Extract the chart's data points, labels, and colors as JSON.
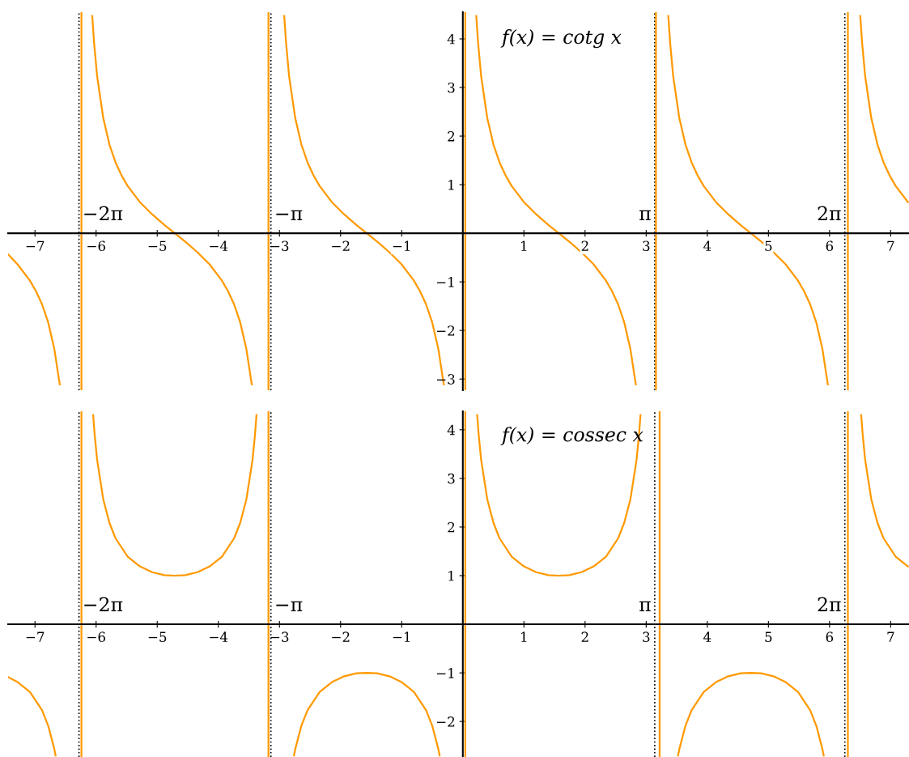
{
  "chart_data": [
    {
      "type": "line",
      "annotations": [
        "f(x) = cotg x"
      ],
      "xlim": [
        -7.44,
        7.3
      ],
      "ylim": [
        -3.23,
        4.55
      ],
      "xticks": [
        {
          "value": -7,
          "label": "−7"
        },
        {
          "value": -6,
          "label": "−6"
        },
        {
          "value": -5,
          "label": "−5"
        },
        {
          "value": -4,
          "label": "−4"
        },
        {
          "value": -3,
          "label": "−3"
        },
        {
          "value": -2,
          "label": "−2"
        },
        {
          "value": -1,
          "label": "−1"
        },
        1,
        2,
        3,
        4,
        5,
        6,
        7
      ],
      "yticks": [
        {
          "value": -3,
          "label": "−3"
        },
        {
          "value": -2,
          "label": "−2"
        },
        {
          "value": -1,
          "label": "−1"
        },
        1,
        2,
        3,
        4
      ],
      "grid": false,
      "legend": false,
      "marker": "none",
      "line_style": "solid",
      "ref_lines": [
        {
          "axis": "x",
          "value": -6.28,
          "label": "−2π",
          "color": "#000000",
          "line_style": "dotted"
        },
        {
          "axis": "x",
          "value": -3.14,
          "label": "−π",
          "color": "#000000",
          "line_style": "dotted"
        },
        {
          "axis": "x",
          "value": 3.14,
          "label": "π",
          "color": "#000000",
          "line_style": "dotted"
        },
        {
          "axis": "x",
          "value": 6.25,
          "label": "2π",
          "color": "#000000",
          "line_style": "dotted"
        },
        {
          "axis": "x",
          "value": -6.24,
          "color": "#ff9900",
          "line_style": "solid"
        },
        {
          "axis": "x",
          "value": -3.18,
          "color": "#ff9900",
          "line_style": "solid"
        },
        {
          "axis": "x",
          "value": 0.04,
          "color": "#ff9900",
          "line_style": "solid"
        },
        {
          "axis": "x",
          "value": 3.16,
          "color": "#ff9900",
          "line_style": "solid"
        },
        {
          "axis": "x",
          "value": 6.3,
          "color": "#ff9900",
          "line_style": "solid"
        }
      ],
      "series": [
        {
          "color": "#ff9900",
          "x": [
            -7.435,
            -7.285,
            -7.085,
            -6.985,
            -6.885,
            -6.785,
            -6.685,
            -6.595
          ],
          "values": [
            -0.44,
            -0.64,
            -0.97,
            -1.19,
            -1.46,
            -1.83,
            -2.37,
            -3.11
          ]
        },
        {
          "color": "#ff9900",
          "x": [
            -6.063,
            -6.033,
            -5.983,
            -5.883,
            -5.783,
            -5.683,
            -5.583,
            -5.483,
            -5.283,
            -5.083,
            -4.883,
            -4.712,
            -4.543,
            -4.343,
            -4.143,
            -3.943,
            -3.843,
            -3.743,
            -3.643,
            -3.543,
            -3.453
          ],
          "values": [
            4.47,
            3.92,
            3.23,
            2.37,
            1.83,
            1.46,
            1.19,
            0.97,
            0.64,
            0.39,
            0.17,
            0,
            -0.17,
            -0.39,
            -0.64,
            -0.97,
            -1.19,
            -1.46,
            -1.83,
            -2.37,
            -3.11
          ]
        },
        {
          "color": "#ff9900",
          "x": [
            -2.922,
            -2.892,
            -2.842,
            -2.742,
            -2.642,
            -2.542,
            -2.442,
            -2.342,
            -2.142,
            -1.942,
            -1.742,
            -1.571,
            -1.402,
            -1.202,
            -1.002,
            -0.802,
            -0.702,
            -0.602,
            -0.502,
            -0.402,
            -0.312
          ],
          "values": [
            4.47,
            3.92,
            3.23,
            2.37,
            1.83,
            1.46,
            1.19,
            0.97,
            0.64,
            0.39,
            0.17,
            0,
            -0.17,
            -0.39,
            -0.64,
            -0.97,
            -1.19,
            -1.46,
            -1.83,
            -2.37,
            -3.11
          ]
        },
        {
          "color": "#ff9900",
          "x": [
            0.22,
            0.25,
            0.3,
            0.4,
            0.5,
            0.6,
            0.7,
            0.8,
            1.0,
            1.2,
            1.4,
            1.571,
            1.74,
            1.94,
            2.14,
            2.34,
            2.44,
            2.54,
            2.64,
            2.74,
            2.83
          ],
          "values": [
            4.47,
            3.92,
            3.23,
            2.37,
            1.83,
            1.46,
            1.19,
            0.97,
            0.64,
            0.39,
            0.17,
            0,
            -0.17,
            -0.39,
            -0.64,
            -0.97,
            -1.19,
            -1.46,
            -1.83,
            -2.37,
            -3.11
          ]
        },
        {
          "color": "#ff9900",
          "x": [
            3.362,
            3.392,
            3.442,
            3.542,
            3.642,
            3.742,
            3.842,
            3.942,
            4.142,
            4.342,
            4.542,
            4.713,
            4.882,
            5.082,
            5.282,
            5.482,
            5.582,
            5.682,
            5.782,
            5.882,
            5.972
          ],
          "values": [
            4.47,
            3.92,
            3.23,
            2.37,
            1.83,
            1.46,
            1.19,
            0.97,
            0.64,
            0.39,
            0.17,
            0,
            -0.17,
            -0.39,
            -0.64,
            -0.97,
            -1.19,
            -1.46,
            -1.83,
            -2.37,
            -3.11
          ]
        },
        {
          "color": "#ff9900",
          "x": [
            6.503,
            6.533,
            6.583,
            6.683,
            6.783,
            6.883,
            6.983,
            7.083,
            7.283
          ],
          "values": [
            4.47,
            3.92,
            3.23,
            2.37,
            1.83,
            1.46,
            1.19,
            0.97,
            0.64
          ]
        }
      ]
    },
    {
      "type": "line",
      "annotations": [
        "f(x) = cossec x"
      ],
      "xlim": [
        -7.44,
        7.3
      ],
      "ylim": [
        -2.73,
        4.38
      ],
      "xticks": [
        {
          "value": -7,
          "label": "−7"
        },
        {
          "value": -6,
          "label": "−6"
        },
        {
          "value": -5,
          "label": "−5"
        },
        {
          "value": -4,
          "label": "−4"
        },
        {
          "value": -3,
          "label": "−3"
        },
        {
          "value": -2,
          "label": "−2"
        },
        {
          "value": -1,
          "label": "−1"
        },
        1,
        2,
        3,
        4,
        5,
        6,
        7
      ],
      "yticks": [
        {
          "value": -2,
          "label": "−2"
        },
        {
          "value": -1,
          "label": "−1"
        },
        1,
        2,
        3,
        4
      ],
      "grid": false,
      "legend": false,
      "marker": "none",
      "line_style": "solid",
      "ref_lines": [
        {
          "axis": "x",
          "value": -6.28,
          "label": "−2π",
          "color": "#000000",
          "line_style": "dotted"
        },
        {
          "axis": "x",
          "value": -3.14,
          "label": "−π",
          "color": "#000000",
          "line_style": "dotted"
        },
        {
          "axis": "x",
          "value": 3.14,
          "label": "π",
          "color": "#000000",
          "line_style": "dotted"
        },
        {
          "axis": "x",
          "value": 6.25,
          "label": "2π",
          "color": "#000000",
          "line_style": "dotted"
        },
        {
          "axis": "x",
          "value": -6.24,
          "color": "#ff9900",
          "line_style": "solid"
        },
        {
          "axis": "x",
          "value": -3.18,
          "color": "#ff9900",
          "line_style": "solid"
        },
        {
          "axis": "x",
          "value": 0.04,
          "color": "#ff9900",
          "line_style": "solid"
        },
        {
          "axis": "x",
          "value": 3.22,
          "color": "#ff9900",
          "line_style": "solid"
        },
        {
          "axis": "x",
          "value": 6.3,
          "color": "#ff9900",
          "line_style": "solid"
        }
      ],
      "series": [
        {
          "color": "#ff9900",
          "x": [
            -7.435,
            -7.283,
            -7.083,
            -6.883,
            -6.783,
            -6.683,
            -6.663
          ],
          "values": [
            -1.09,
            -1.19,
            -1.39,
            -1.77,
            -2.09,
            -2.57,
            -2.7
          ]
        },
        {
          "color": "#ff9900",
          "x": [
            -6.048,
            -6.023,
            -5.983,
            -5.883,
            -5.783,
            -5.683,
            -5.483,
            -5.283,
            -5.083,
            -4.883,
            -4.712,
            -4.541,
            -4.341,
            -4.141,
            -3.941,
            -3.741,
            -3.641,
            -3.541,
            -3.441,
            -3.401,
            -3.376
          ],
          "values": [
            4.3,
            3.89,
            3.38,
            2.57,
            2.09,
            1.77,
            1.39,
            1.19,
            1.07,
            1.01,
            1,
            1.01,
            1.07,
            1.19,
            1.39,
            1.77,
            2.09,
            2.57,
            3.38,
            3.89,
            4.3
          ]
        },
        {
          "color": "#ff9900",
          "x": [
            -2.762,
            -2.742,
            -2.642,
            -2.542,
            -2.342,
            -2.142,
            -1.942,
            -1.742,
            -1.571,
            -1.4,
            -1.2,
            -1.0,
            -0.8,
            -0.6,
            -0.5,
            -0.4,
            -0.38
          ],
          "values": [
            -2.7,
            -2.57,
            -2.09,
            -1.77,
            -1.39,
            -1.19,
            -1.07,
            -1.01,
            -1,
            -1.01,
            -1.07,
            -1.19,
            -1.39,
            -1.77,
            -2.09,
            -2.57,
            -2.7
          ]
        },
        {
          "color": "#ff9900",
          "x": [
            0.235,
            0.26,
            0.3,
            0.4,
            0.5,
            0.6,
            0.8,
            1.0,
            1.2,
            1.4,
            1.571,
            1.742,
            1.942,
            2.142,
            2.342,
            2.542,
            2.642,
            2.742,
            2.842,
            2.882,
            2.907
          ],
          "values": [
            4.3,
            3.89,
            3.38,
            2.57,
            2.09,
            1.77,
            1.39,
            1.19,
            1.07,
            1.01,
            1,
            1.01,
            1.07,
            1.19,
            1.39,
            1.77,
            2.09,
            2.57,
            3.38,
            3.89,
            4.3
          ]
        },
        {
          "color": "#ff9900",
          "x": [
            3.522,
            3.542,
            3.642,
            3.742,
            3.942,
            4.142,
            4.342,
            4.542,
            4.713,
            4.884,
            5.084,
            5.284,
            5.484,
            5.684,
            5.784,
            5.884,
            5.904
          ],
          "values": [
            -2.7,
            -2.57,
            -2.09,
            -1.77,
            -1.39,
            -1.19,
            -1.07,
            -1.01,
            -1,
            -1.01,
            -1.07,
            -1.19,
            -1.39,
            -1.77,
            -2.09,
            -2.57,
            -2.7
          ]
        },
        {
          "color": "#ff9900",
          "x": [
            6.518,
            6.543,
            6.583,
            6.683,
            6.783,
            6.883,
            7.083,
            7.283
          ],
          "values": [
            4.3,
            3.89,
            3.38,
            2.57,
            2.09,
            1.77,
            1.39,
            1.19
          ]
        }
      ]
    }
  ]
}
